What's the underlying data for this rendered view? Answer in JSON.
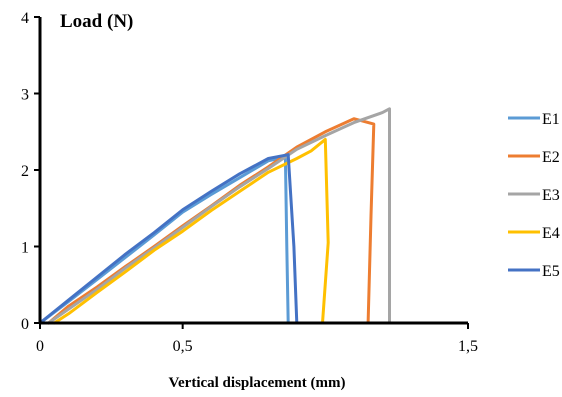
{
  "chart_data": {
    "type": "line",
    "ylabel": "Load (N)",
    "xlabel": "Vertical displacement (mm)",
    "xlim": [
      0,
      1.5
    ],
    "ylim": [
      0,
      4
    ],
    "x_ticks": [
      0,
      0.5,
      1.5
    ],
    "x_tick_labels": [
      "0",
      "0,5",
      "1,5"
    ],
    "y_ticks": [
      0,
      1,
      2,
      3,
      4
    ],
    "y_tick_labels": [
      "0",
      "1",
      "2",
      "3",
      "4"
    ],
    "grid": false,
    "legend_position": "right",
    "series": [
      {
        "name": "E1",
        "color": "#5b9bd5",
        "x": [
          0,
          0.1,
          0.2,
          0.3,
          0.4,
          0.5,
          0.6,
          0.7,
          0.8,
          0.86,
          0.865,
          0.87
        ],
        "y": [
          0,
          0.28,
          0.57,
          0.86,
          1.15,
          1.45,
          1.68,
          1.9,
          2.12,
          2.17,
          1.0,
          0
        ]
      },
      {
        "name": "E2",
        "color": "#ed7d31",
        "x": [
          0.03,
          0.1,
          0.2,
          0.3,
          0.4,
          0.5,
          0.6,
          0.7,
          0.8,
          0.9,
          1.0,
          1.1,
          1.17,
          1.16,
          1.15
        ],
        "y": [
          0,
          0.22,
          0.47,
          0.74,
          1.0,
          1.27,
          1.53,
          1.8,
          2.04,
          2.3,
          2.5,
          2.67,
          2.6,
          1.4,
          0
        ]
      },
      {
        "name": "E3",
        "color": "#a5a5a5",
        "x": [
          0.03,
          0.1,
          0.2,
          0.3,
          0.4,
          0.5,
          0.6,
          0.7,
          0.8,
          0.9,
          1.0,
          1.1,
          1.2,
          1.225,
          1.225
        ],
        "y": [
          0,
          0.18,
          0.44,
          0.72,
          0.98,
          1.25,
          1.52,
          1.78,
          2.02,
          2.27,
          2.45,
          2.62,
          2.75,
          2.8,
          0
        ]
      },
      {
        "name": "E4",
        "color": "#ffc000",
        "x": [
          0.05,
          0.1,
          0.2,
          0.3,
          0.4,
          0.5,
          0.6,
          0.7,
          0.8,
          0.9,
          0.95,
          1.0,
          1.01,
          0.99
        ],
        "y": [
          0,
          0.12,
          0.4,
          0.67,
          0.95,
          1.2,
          1.47,
          1.72,
          1.97,
          2.15,
          2.25,
          2.4,
          1.05,
          0
        ]
      },
      {
        "name": "E5",
        "color": "#4472c4",
        "x": [
          0,
          0.1,
          0.2,
          0.3,
          0.4,
          0.5,
          0.6,
          0.7,
          0.8,
          0.87,
          0.89,
          0.9
        ],
        "y": [
          0,
          0.3,
          0.6,
          0.9,
          1.18,
          1.48,
          1.72,
          1.95,
          2.15,
          2.2,
          1.0,
          0
        ]
      }
    ]
  }
}
